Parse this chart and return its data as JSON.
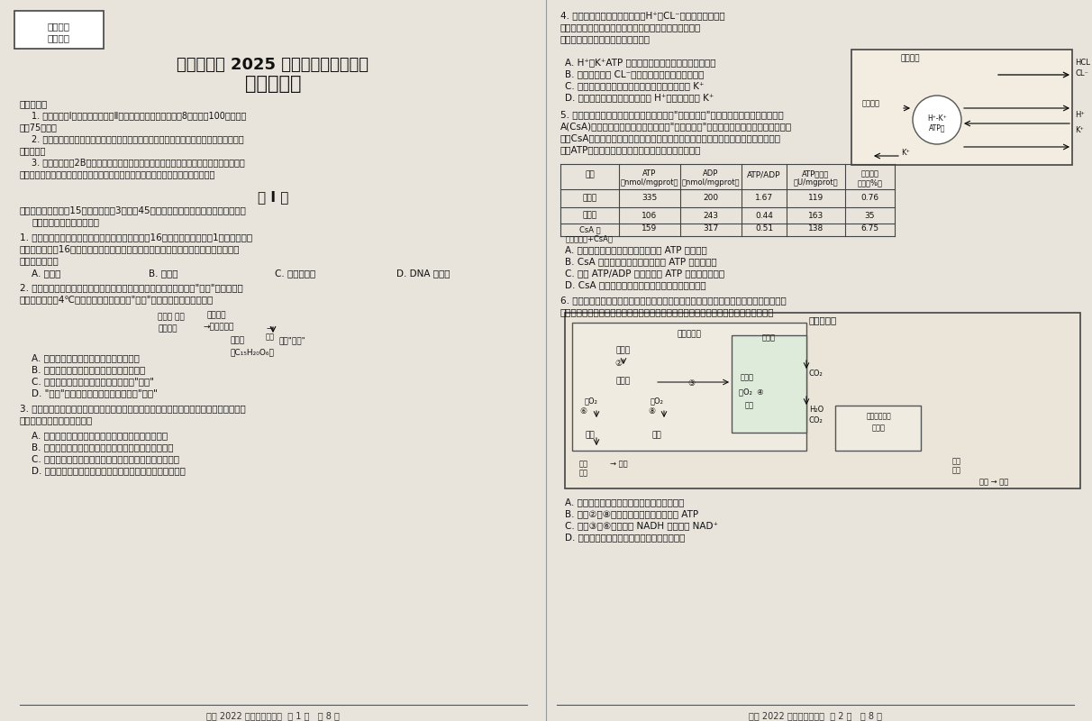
{
  "bg_color": "#e8e4dc",
  "left_stamp": [
    "工作秘密",
    "严禁泄露"
  ],
  "left_title1": "自贡市普高 2025 届第一次诊断性考试",
  "left_title2": "生物学试题",
  "left_footer": "普高 2022 级一诊生物试题  第 1 页   共 8 页",
  "right_footer": "普高 2022 级一诊生物试题  第 2 页   共 8 页"
}
